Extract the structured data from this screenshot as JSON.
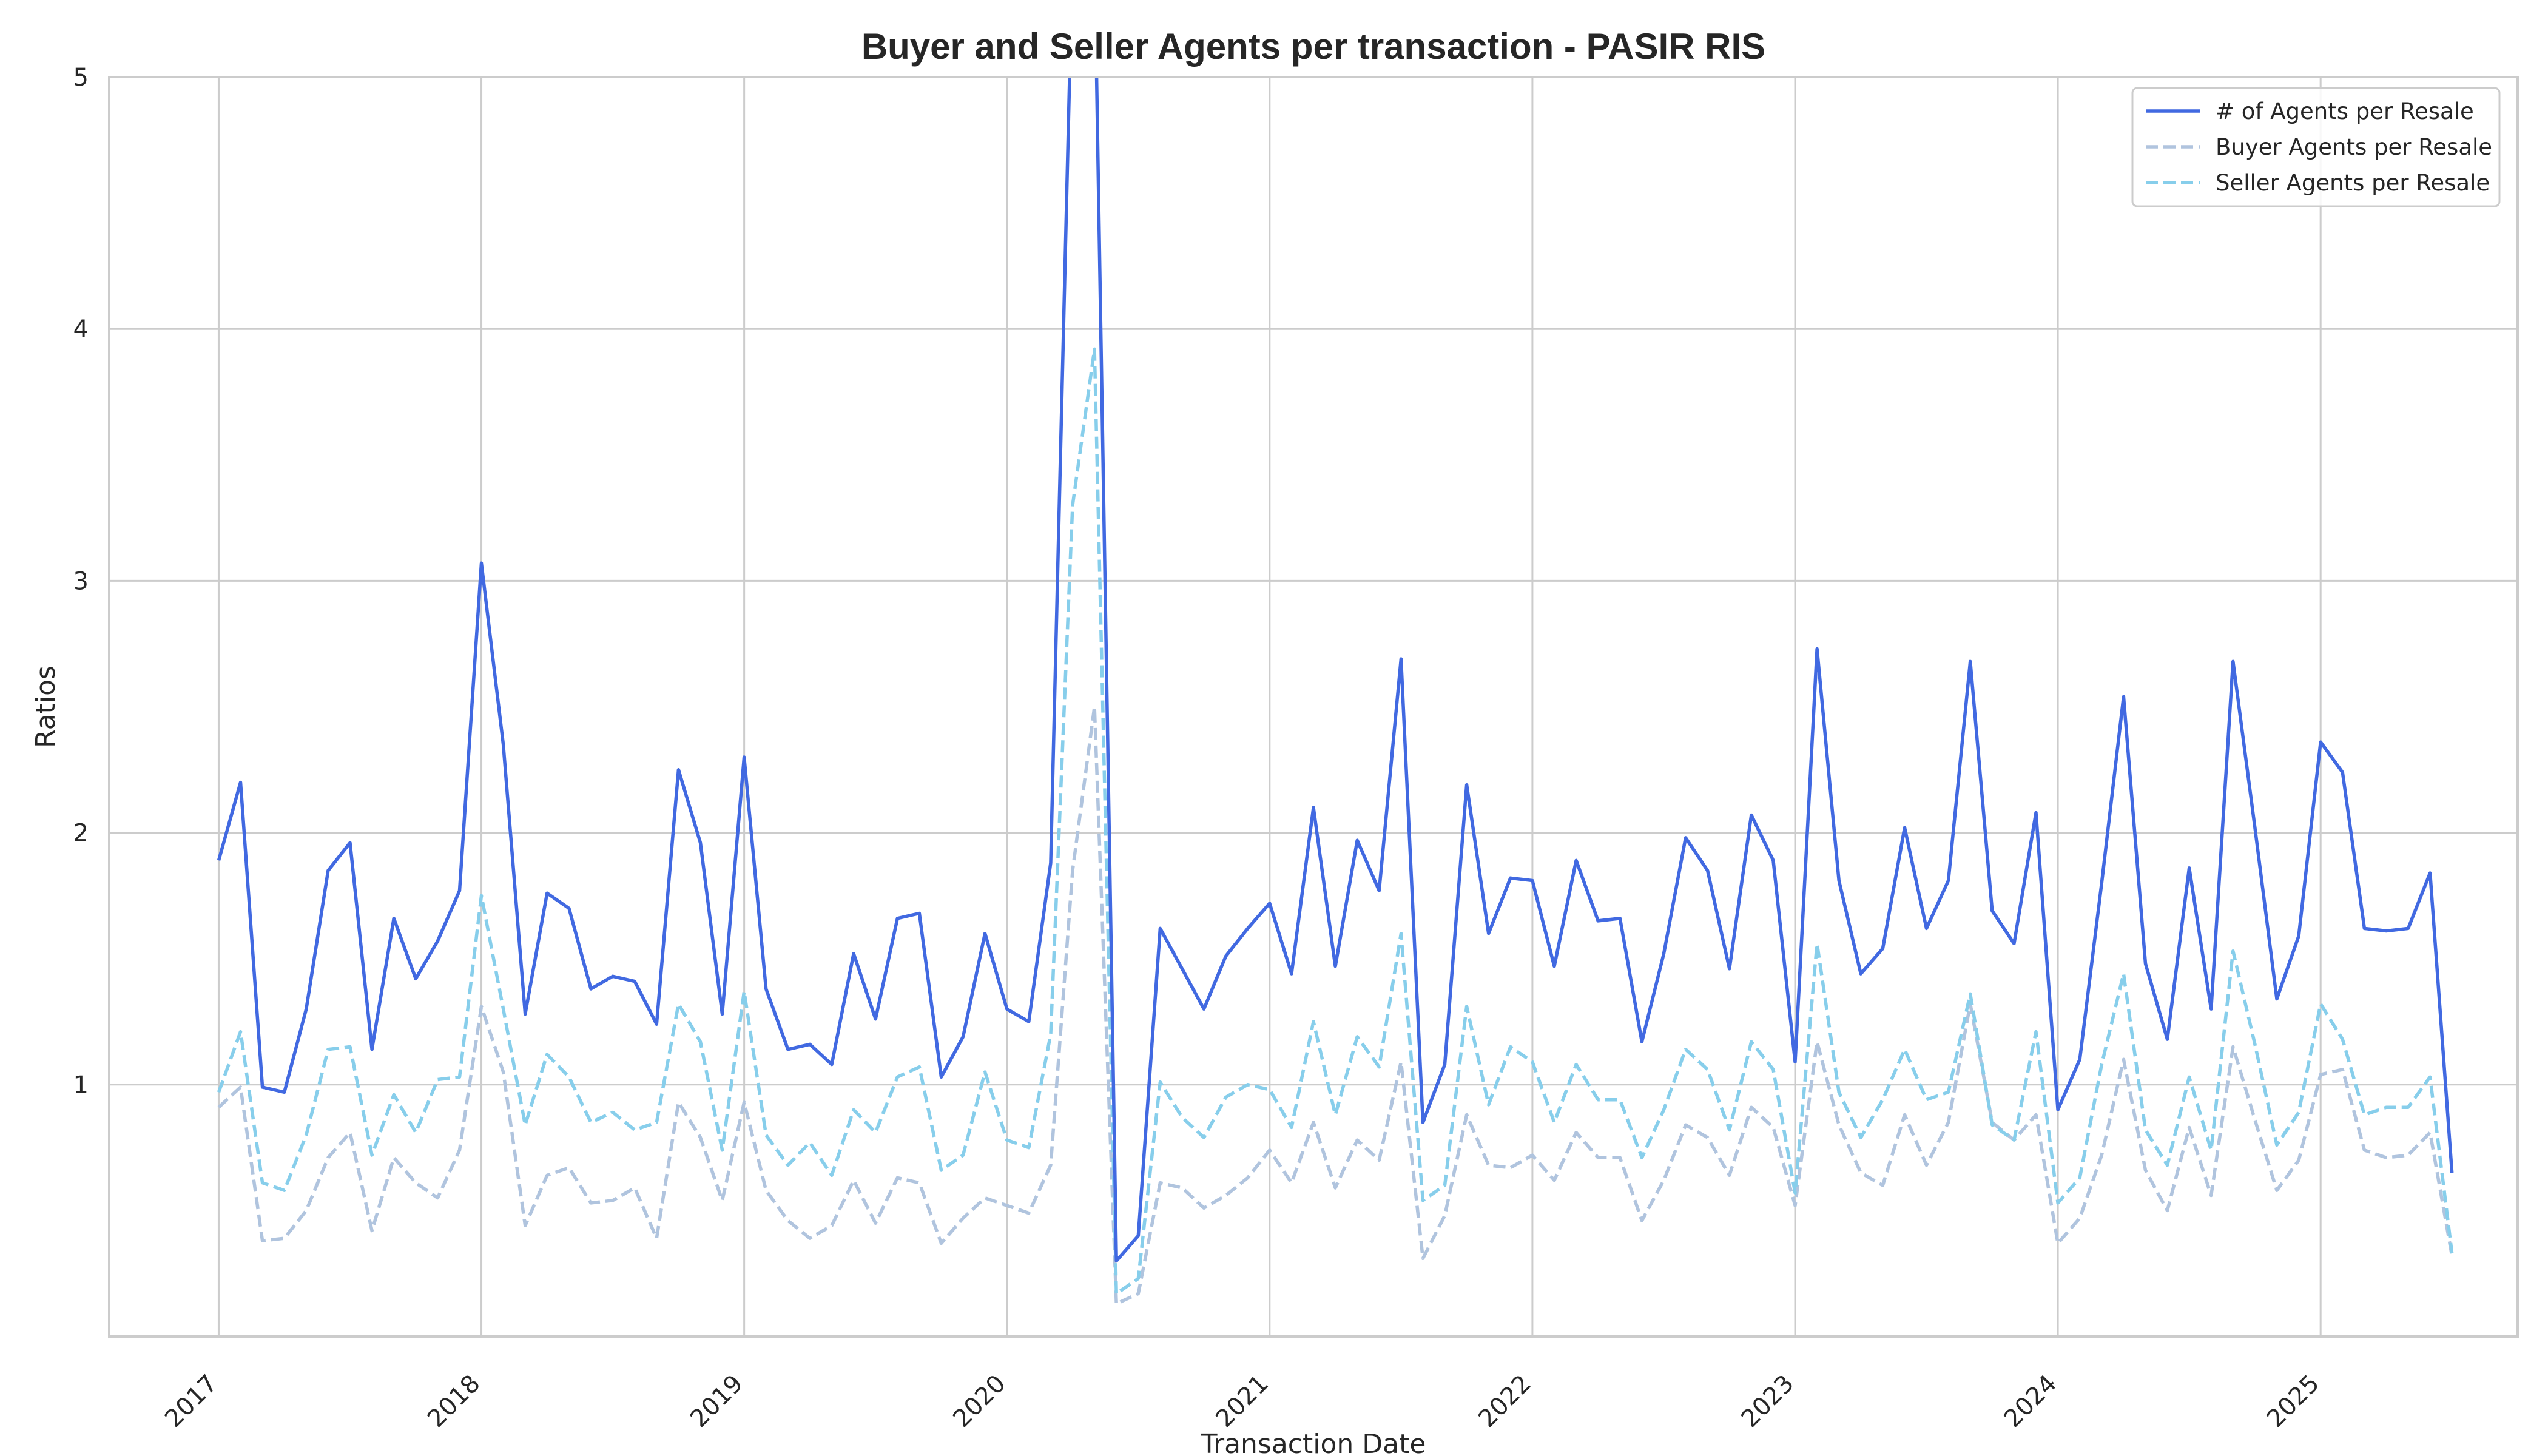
{
  "chart_data": {
    "type": "line",
    "title": "Buyer and Seller Agents per transaction - PASIR RIS",
    "xlabel": "Transaction Date",
    "ylabel": "Ratios",
    "ylim": [
      0,
      5
    ],
    "xlim": [
      "2016-08-01",
      "2025-10-01"
    ],
    "grid": true,
    "legend_position": "top-right",
    "x_ticks": [
      "2017",
      "2018",
      "2019",
      "2020",
      "2021",
      "2022",
      "2023",
      "2024",
      "2025"
    ],
    "y_ticks": [
      1,
      2,
      3,
      4,
      5
    ],
    "start_date": "2017-01",
    "frequency": "monthly",
    "series": [
      {
        "name": "# of Agents per Resale",
        "color": "#4169e1",
        "style": "solid",
        "values": [
          1.89,
          2.2,
          0.99,
          0.97,
          1.3,
          1.85,
          1.96,
          1.14,
          1.66,
          1.42,
          1.57,
          1.77,
          3.07,
          2.35,
          1.28,
          1.76,
          1.7,
          1.38,
          1.43,
          1.41,
          1.24,
          2.25,
          1.96,
          1.28,
          2.3,
          1.38,
          1.14,
          1.16,
          1.08,
          1.52,
          1.26,
          1.66,
          1.68,
          1.03,
          1.19,
          1.6,
          1.3,
          1.25,
          1.88,
          5.5,
          5.5,
          0.3,
          0.4,
          1.62,
          1.46,
          1.3,
          1.51,
          1.62,
          1.72,
          1.44,
          2.1,
          1.47,
          1.97,
          1.77,
          2.69,
          0.85,
          1.08,
          2.19,
          1.6,
          1.82,
          1.81,
          1.47,
          1.89,
          1.65,
          1.66,
          1.17,
          1.52,
          1.98,
          1.85,
          1.46,
          2.07,
          1.89,
          1.09,
          2.73,
          1.81,
          1.44,
          1.54,
          2.02,
          1.62,
          1.81,
          2.68,
          1.69,
          1.56,
          2.08,
          0.9,
          1.1,
          1.8,
          2.54,
          1.48,
          1.18,
          1.86,
          1.3,
          2.68,
          2.02,
          1.34,
          1.59,
          2.36,
          2.24,
          1.62,
          1.61,
          1.62,
          1.84,
          0.65
        ]
      },
      {
        "name": "Buyer Agents per Resale",
        "color": "#b0c4de",
        "style": "dashed",
        "values": [
          0.91,
          0.99,
          0.38,
          0.39,
          0.5,
          0.71,
          0.81,
          0.42,
          0.71,
          0.61,
          0.55,
          0.74,
          1.31,
          1.05,
          0.44,
          0.64,
          0.67,
          0.53,
          0.54,
          0.59,
          0.39,
          0.93,
          0.79,
          0.54,
          0.93,
          0.58,
          0.46,
          0.39,
          0.44,
          0.62,
          0.45,
          0.63,
          0.61,
          0.37,
          0.47,
          0.55,
          0.52,
          0.49,
          0.68,
          1.85,
          2.5,
          0.13,
          0.17,
          0.61,
          0.59,
          0.51,
          0.56,
          0.63,
          0.74,
          0.61,
          0.85,
          0.59,
          0.78,
          0.7,
          1.09,
          0.31,
          0.48,
          0.88,
          0.68,
          0.67,
          0.72,
          0.62,
          0.81,
          0.71,
          0.71,
          0.46,
          0.62,
          0.84,
          0.79,
          0.64,
          0.91,
          0.83,
          0.52,
          1.17,
          0.84,
          0.65,
          0.6,
          0.88,
          0.68,
          0.85,
          1.32,
          0.85,
          0.78,
          0.88,
          0.37,
          0.47,
          0.72,
          1.1,
          0.66,
          0.5,
          0.83,
          0.56,
          1.15,
          0.86,
          0.58,
          0.7,
          1.04,
          1.06,
          0.74,
          0.71,
          0.72,
          0.81,
          0.32
        ]
      },
      {
        "name": "Seller Agents per Resale",
        "color": "#87ceeb",
        "style": "dashed",
        "values": [
          0.97,
          1.21,
          0.61,
          0.58,
          0.8,
          1.14,
          1.15,
          0.72,
          0.96,
          0.81,
          1.02,
          1.03,
          1.75,
          1.3,
          0.84,
          1.12,
          1.03,
          0.85,
          0.89,
          0.82,
          0.85,
          1.32,
          1.17,
          0.74,
          1.37,
          0.8,
          0.68,
          0.77,
          0.64,
          0.9,
          0.81,
          1.03,
          1.07,
          0.66,
          0.72,
          1.05,
          0.78,
          0.75,
          1.2,
          3.3,
          3.92,
          0.17,
          0.23,
          1.01,
          0.87,
          0.79,
          0.95,
          1.0,
          0.98,
          0.83,
          1.25,
          0.88,
          1.19,
          1.07,
          1.6,
          0.54,
          0.6,
          1.31,
          0.92,
          1.15,
          1.09,
          0.85,
          1.08,
          0.94,
          0.94,
          0.71,
          0.9,
          1.14,
          1.06,
          0.82,
          1.17,
          1.06,
          0.57,
          1.56,
          0.97,
          0.79,
          0.94,
          1.14,
          0.94,
          0.97,
          1.36,
          0.84,
          0.78,
          1.21,
          0.53,
          0.63,
          1.08,
          1.44,
          0.82,
          0.68,
          1.03,
          0.74,
          1.53,
          1.16,
          0.76,
          0.89,
          1.32,
          1.18,
          0.88,
          0.91,
          0.91,
          1.03,
          0.33
        ]
      }
    ]
  }
}
